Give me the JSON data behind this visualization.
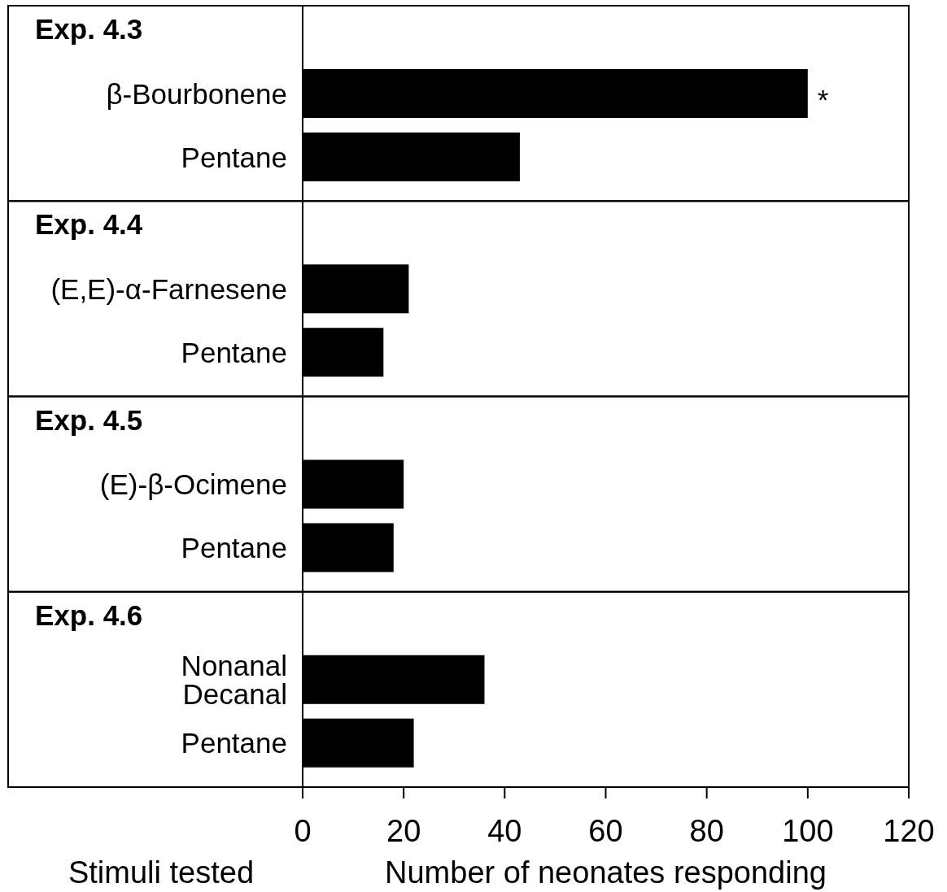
{
  "chart_data": [
    {
      "type": "bar",
      "orientation": "horizontal",
      "title": "Exp. 4.3",
      "categories": [
        "β-Bourbonene",
        "Pentane"
      ],
      "values": [
        100,
        43
      ],
      "color": "#000000",
      "xlim": [
        0,
        120
      ],
      "tick_labels": "y",
      "annotations": [
        {
          "text": "*",
          "x": 100,
          "y": "β-Bourbonene"
        }
      ]
    },
    {
      "type": "bar",
      "orientation": "horizontal",
      "title": "Exp. 4.4",
      "categories": [
        "(E,E)-α-Farnesene",
        "Pentane"
      ],
      "values": [
        21,
        16
      ],
      "color": "#000000",
      "xlim": [
        0,
        120
      ],
      "tick_labels": "y"
    },
    {
      "type": "bar",
      "orientation": "horizontal",
      "title": "Exp. 4.5",
      "categories": [
        "(E)-β-Ocimene",
        "Pentane"
      ],
      "values": [
        20,
        18
      ],
      "color": "#000000",
      "xlim": [
        0,
        120
      ],
      "tick_labels": "y"
    },
    {
      "type": "bar",
      "orientation": "horizontal",
      "title": "Exp. 4.6",
      "categories": [
        "Nonanal\nDecanal",
        "Pentane"
      ],
      "values": [
        36,
        22
      ],
      "color": "#000000",
      "xlim": [
        0,
        120
      ],
      "xticks": [
        0,
        20,
        40,
        60,
        80,
        100,
        120
      ],
      "xlabel": "Number of neonates responding",
      "ylabel": "Stimuli tested"
    }
  ]
}
